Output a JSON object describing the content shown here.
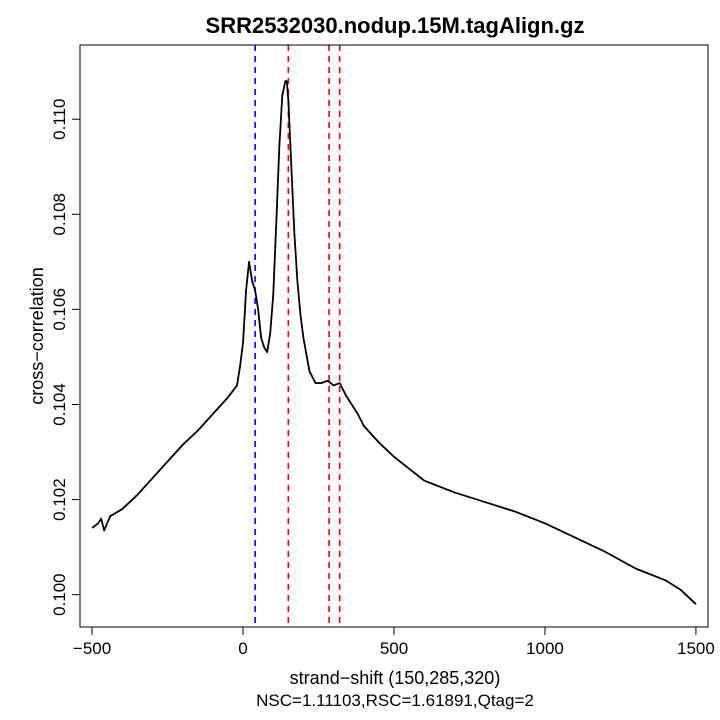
{
  "chart_data": {
    "type": "line",
    "title": "SRR2532030.nodup.15M.tagAlign.gz",
    "xlabel": "strand−shift (150,285,320)",
    "ylabel": "cross−correlation",
    "subtitle": "NSC=1.11103,RSC=1.61891,Qtag=2",
    "xlim": [
      -540,
      1540
    ],
    "ylim": [
      99.32,
      111.56
    ],
    "y_scale": 0.001,
    "x_ticks": [
      {
        "value": -500,
        "label": "−500"
      },
      {
        "value": 0,
        "label": "0"
      },
      {
        "value": 500,
        "label": "500"
      },
      {
        "value": 1000,
        "label": "1000"
      },
      {
        "value": 1500,
        "label": "1500"
      }
    ],
    "y_ticks": [
      {
        "value": 100,
        "label": "0.100"
      },
      {
        "value": 102,
        "label": "0.102"
      },
      {
        "value": 104,
        "label": "0.104"
      },
      {
        "value": 106,
        "label": "0.106"
      },
      {
        "value": 108,
        "label": "0.108"
      },
      {
        "value": 110,
        "label": "0.110"
      }
    ],
    "vlines": [
      {
        "x": 40,
        "color": "#0000ff"
      },
      {
        "x": 150,
        "color": "#ff0000"
      },
      {
        "x": 285,
        "color": "#ff0000"
      },
      {
        "x": 320,
        "color": "#ff0000"
      }
    ],
    "series": [
      {
        "color": "#000000",
        "x": [
          -500,
          -480,
          -470,
          -460,
          -440,
          -400,
          -350,
          -300,
          -250,
          -200,
          -150,
          -100,
          -50,
          -20,
          -10,
          0,
          10,
          20,
          30,
          40,
          50,
          60,
          70,
          80,
          90,
          100,
          110,
          120,
          130,
          140,
          145,
          150,
          160,
          170,
          180,
          190,
          200,
          220,
          240,
          260,
          280,
          300,
          320,
          340,
          360,
          380,
          400,
          450,
          500,
          600,
          700,
          800,
          900,
          1000,
          1100,
          1200,
          1300,
          1400,
          1450,
          1500
        ],
        "y": [
          101.4,
          101.5,
          101.6,
          101.35,
          101.65,
          101.8,
          102.1,
          102.45,
          102.8,
          103.15,
          103.45,
          103.8,
          104.15,
          104.4,
          104.8,
          105.3,
          106.4,
          107.0,
          106.6,
          106.4,
          106.0,
          105.4,
          105.2,
          105.1,
          105.5,
          106.3,
          107.8,
          109.4,
          110.5,
          110.8,
          110.8,
          110.4,
          109.0,
          107.6,
          106.6,
          105.9,
          105.4,
          104.7,
          104.45,
          104.45,
          104.5,
          104.4,
          104.45,
          104.2,
          104.0,
          103.8,
          103.55,
          103.2,
          102.9,
          102.4,
          102.15,
          101.95,
          101.75,
          101.5,
          101.2,
          100.9,
          100.55,
          100.3,
          100.1,
          99.8
        ]
      }
    ]
  }
}
